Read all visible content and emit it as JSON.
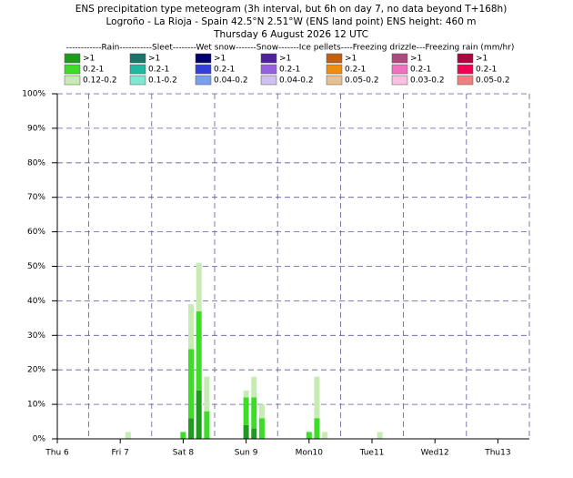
{
  "chart_data": {
    "type": "stacked_bar",
    "title": [
      "ENS precipitation type meteogram (3h interval, but 6h on day 7, no data beyond T+168h)",
      "Logroño - La Rioja - Spain 42.5°N 2.51°W (ENS land point) ENS height: 460 m",
      "Thursday  6 August 2026 12 UTC"
    ],
    "legend": {
      "header": "------------Rain-----------Sleet--------Wet snow-------Snow-------Ice pellets----Freezing drizzle---Freezing rain (mm/hr)",
      "columns": [
        [
          {
            "label": ">1",
            "color": "#1e9b1e"
          },
          {
            "label": "0.2-1",
            "color": "#3ddc28"
          },
          {
            "label": "0.12-0.2",
            "color": "#c6ecb4"
          }
        ],
        [
          {
            "label": ">1",
            "color": "#17756a"
          },
          {
            "label": "0.2-1",
            "color": "#20b8a0"
          },
          {
            "label": "0.1-0.2",
            "color": "#80e8d0"
          }
        ],
        [
          {
            "label": ">1",
            "color": "#00006a"
          },
          {
            "label": "0.2-1",
            "color": "#3040d8"
          },
          {
            "label": "0.04-0.2",
            "color": "#78a0f0"
          }
        ],
        [
          {
            "label": ">1",
            "color": "#5020a0"
          },
          {
            "label": "0.2-1",
            "color": "#9860e0"
          },
          {
            "label": "0.04-0.2",
            "color": "#d0c0f0"
          }
        ],
        [
          {
            "label": ">1",
            "color": "#c06010"
          },
          {
            "label": "0.2-1",
            "color": "#f08c10"
          },
          {
            "label": "0.05-0.2",
            "color": "#e8c090"
          }
        ],
        [
          {
            "label": ">1",
            "color": "#b04880"
          },
          {
            "label": "0.2-1",
            "color": "#f070c0"
          },
          {
            "label": "0.03-0.2",
            "color": "#f8c0e0"
          }
        ],
        [
          {
            "label": ">1",
            "color": "#b00040"
          },
          {
            "label": "0.2-1",
            "color": "#f00050"
          },
          {
            "label": "0.05-0.2",
            "color": "#f08080"
          }
        ]
      ]
    },
    "x": [
      27,
      48,
      51,
      54,
      57,
      72,
      75,
      78,
      96,
      99,
      102,
      123
    ],
    "series": [
      {
        "name": ">1",
        "color": "#1e9b1e",
        "values": [
          0,
          0,
          6,
          14,
          0,
          4,
          3,
          0,
          0,
          0,
          0,
          0
        ]
      },
      {
        "name": "0.2-1",
        "color": "#3ddc28",
        "values": [
          0,
          2,
          20,
          23,
          8,
          8,
          9,
          6,
          2,
          6,
          0,
          0
        ]
      },
      {
        "name": "0.12-0.2",
        "color": "#c6ecb4",
        "values": [
          2,
          0,
          13,
          14,
          10,
          2,
          6,
          4,
          0,
          12,
          2,
          2
        ]
      }
    ],
    "xlim": [
      0,
      180
    ],
    "xticks": [
      {
        "value": 0,
        "label": "Thu 6"
      },
      {
        "value": 24,
        "label": "Fri 7"
      },
      {
        "value": 48,
        "label": "Sat 8"
      },
      {
        "value": 72,
        "label": "Sun 9"
      },
      {
        "value": 96,
        "label": "Mon10"
      },
      {
        "value": 120,
        "label": "Tue11"
      },
      {
        "value": 144,
        "label": "Wed12"
      },
      {
        "value": 168,
        "label": "Thu13"
      }
    ],
    "xtick_label_colors": [
      "#000080",
      "#000080",
      "#000080",
      "#e00000",
      "#000080",
      "#000080",
      "#000080",
      "#000080"
    ],
    "xgrid": [
      12,
      36,
      60,
      84,
      108,
      132,
      156,
      180
    ],
    "ylim": [
      0,
      100
    ],
    "yticks": [
      {
        "value": 0,
        "label": "0%"
      },
      {
        "value": 10,
        "label": "10%"
      },
      {
        "value": 20,
        "label": "20%"
      },
      {
        "value": 30,
        "label": "30%"
      },
      {
        "value": 40,
        "label": "40%"
      },
      {
        "value": 50,
        "label": "50%"
      },
      {
        "value": 60,
        "label": "60%"
      },
      {
        "value": 70,
        "label": "70%"
      },
      {
        "value": 80,
        "label": "80%"
      },
      {
        "value": 90,
        "label": "90%"
      },
      {
        "value": 100,
        "label": "100%"
      }
    ],
    "grid": true,
    "grid_color": "#5a5aa0"
  }
}
